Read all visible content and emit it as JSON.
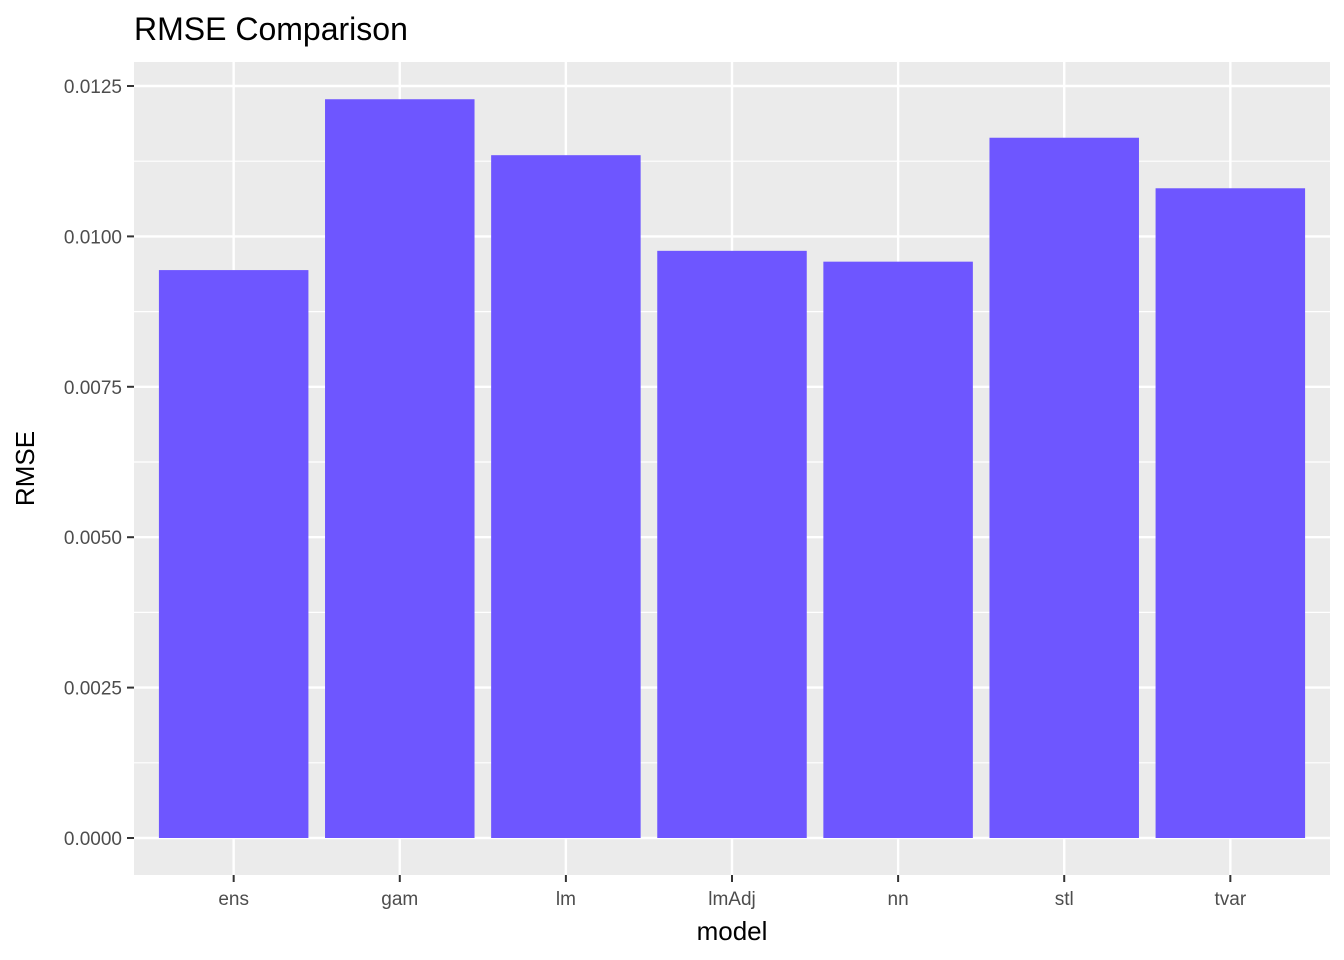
{
  "chart_data": {
    "type": "bar",
    "title": "RMSE Comparison",
    "xlabel": "model",
    "ylabel": "RMSE",
    "categories": [
      "ens",
      "gam",
      "lm",
      "lmAdj",
      "nn",
      "stl",
      "tvar"
    ],
    "values": [
      0.00944,
      0.01228,
      0.01135,
      0.00976,
      0.00958,
      0.01164,
      0.0108
    ],
    "ylim": [
      0,
      0.0125
    ],
    "y_ticks": [
      "0.0000",
      "0.0025",
      "0.0050",
      "0.0075",
      "0.0100",
      "0.0125"
    ],
    "grid": true,
    "legend": "none",
    "colors": {
      "bar": "#6e56ff",
      "panel": "#ebebeb",
      "grid": "#ffffff",
      "tick": "#333333"
    }
  }
}
